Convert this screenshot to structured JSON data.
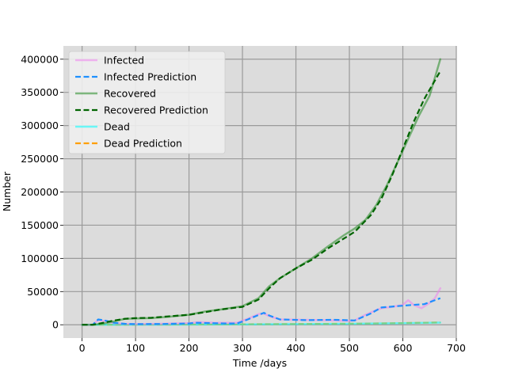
{
  "chart_data": {
    "type": "line",
    "title": "",
    "xlabel": "Time /days",
    "ylabel": "Number",
    "xlim": [
      -35,
      700
    ],
    "ylim": [
      -20000,
      420000
    ],
    "grid": true,
    "legend_position": "top-left",
    "background_color": "#dcdcdc",
    "xticks": [
      0,
      100,
      200,
      300,
      400,
      500,
      600,
      700
    ],
    "yticks": [
      0,
      50000,
      100000,
      150000,
      200000,
      250000,
      300000,
      350000,
      400000
    ],
    "series": [
      {
        "name": "Infected",
        "color": "#ee82ee",
        "style": "solid",
        "points": [
          [
            0,
            0
          ],
          [
            20,
            200
          ],
          [
            30,
            7000
          ],
          [
            40,
            6000
          ],
          [
            60,
            2500
          ],
          [
            80,
            1500
          ],
          [
            100,
            1000
          ],
          [
            150,
            1500
          ],
          [
            200,
            2500
          ],
          [
            220,
            4000
          ],
          [
            250,
            3000
          ],
          [
            290,
            3000
          ],
          [
            310,
            9000
          ],
          [
            330,
            16000
          ],
          [
            340,
            17000
          ],
          [
            350,
            13000
          ],
          [
            370,
            8000
          ],
          [
            400,
            7500
          ],
          [
            450,
            7000
          ],
          [
            500,
            6000
          ],
          [
            510,
            6500
          ],
          [
            530,
            15000
          ],
          [
            550,
            22000
          ],
          [
            560,
            25000
          ],
          [
            580,
            27000
          ],
          [
            600,
            30000
          ],
          [
            610,
            37000
          ],
          [
            620,
            30000
          ],
          [
            635,
            25000
          ],
          [
            650,
            33000
          ],
          [
            660,
            40000
          ],
          [
            670,
            55000
          ]
        ]
      },
      {
        "name": "Infected Prediction",
        "color": "#1e90ff",
        "style": "dashed",
        "points": [
          [
            0,
            0
          ],
          [
            20,
            0
          ],
          [
            30,
            8000
          ],
          [
            40,
            7000
          ],
          [
            60,
            3000
          ],
          [
            80,
            1500
          ],
          [
            100,
            1000
          ],
          [
            150,
            1200
          ],
          [
            200,
            2000
          ],
          [
            210,
            3000
          ],
          [
            240,
            2500
          ],
          [
            270,
            2000
          ],
          [
            290,
            2000
          ],
          [
            310,
            8000
          ],
          [
            340,
            18000
          ],
          [
            350,
            14000
          ],
          [
            370,
            8000
          ],
          [
            420,
            7000
          ],
          [
            470,
            7500
          ],
          [
            510,
            6500
          ],
          [
            540,
            17000
          ],
          [
            560,
            26000
          ],
          [
            590,
            28000
          ],
          [
            620,
            30000
          ],
          [
            640,
            31000
          ],
          [
            670,
            40000
          ]
        ]
      },
      {
        "name": "Recovered",
        "color": "#228b22",
        "style": "solid",
        "points": [
          [
            0,
            0
          ],
          [
            20,
            0
          ],
          [
            40,
            2000
          ],
          [
            60,
            5000
          ],
          [
            80,
            9000
          ],
          [
            100,
            9500
          ],
          [
            130,
            10000
          ],
          [
            160,
            12000
          ],
          [
            200,
            15000
          ],
          [
            230,
            20000
          ],
          [
            260,
            23000
          ],
          [
            300,
            28000
          ],
          [
            330,
            40000
          ],
          [
            350,
            58000
          ],
          [
            370,
            70000
          ],
          [
            400,
            85000
          ],
          [
            430,
            100000
          ],
          [
            460,
            118000
          ],
          [
            490,
            135000
          ],
          [
            510,
            145000
          ],
          [
            530,
            158000
          ],
          [
            550,
            180000
          ],
          [
            570,
            210000
          ],
          [
            590,
            245000
          ],
          [
            610,
            280000
          ],
          [
            630,
            315000
          ],
          [
            650,
            345000
          ],
          [
            670,
            400000
          ]
        ]
      },
      {
        "name": "Recovered Prediction",
        "color": "#006400",
        "style": "dashed",
        "points": [
          [
            0,
            0
          ],
          [
            20,
            0
          ],
          [
            40,
            3000
          ],
          [
            60,
            6500
          ],
          [
            80,
            9000
          ],
          [
            100,
            10000
          ],
          [
            130,
            10500
          ],
          [
            160,
            12500
          ],
          [
            200,
            15000
          ],
          [
            230,
            19000
          ],
          [
            260,
            23000
          ],
          [
            300,
            27000
          ],
          [
            330,
            38000
          ],
          [
            350,
            55000
          ],
          [
            370,
            70000
          ],
          [
            400,
            85000
          ],
          [
            430,
            98000
          ],
          [
            460,
            115000
          ],
          [
            490,
            130000
          ],
          [
            510,
            140000
          ],
          [
            540,
            165000
          ],
          [
            560,
            190000
          ],
          [
            580,
            225000
          ],
          [
            600,
            265000
          ],
          [
            620,
            305000
          ],
          [
            640,
            340000
          ],
          [
            670,
            382000
          ]
        ]
      },
      {
        "name": "Dead",
        "color": "#00ffff",
        "style": "solid",
        "points": [
          [
            0,
            0
          ],
          [
            100,
            100
          ],
          [
            200,
            300
          ],
          [
            300,
            600
          ],
          [
            400,
            1000
          ],
          [
            500,
            1500
          ],
          [
            600,
            2300
          ],
          [
            670,
            3200
          ]
        ]
      },
      {
        "name": "Dead Prediction",
        "color": "#ff9f00",
        "style": "dashed",
        "points": [
          [
            0,
            0
          ],
          [
            100,
            200
          ],
          [
            200,
            400
          ],
          [
            300,
            700
          ],
          [
            400,
            1100
          ],
          [
            500,
            1600
          ],
          [
            600,
            2500
          ],
          [
            670,
            3500
          ]
        ]
      }
    ]
  }
}
